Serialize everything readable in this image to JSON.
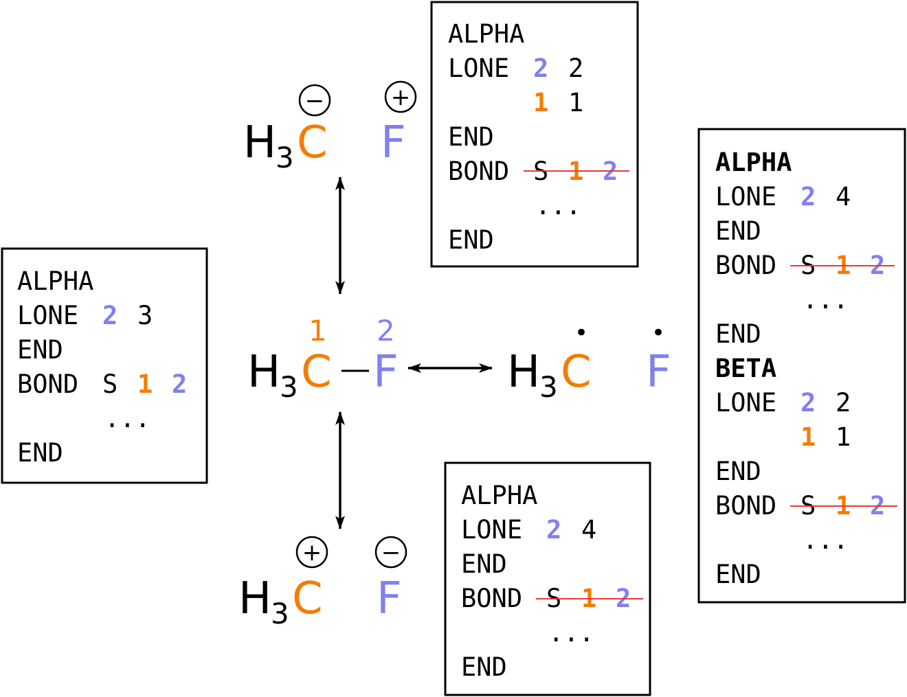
{
  "colors": {
    "carbon": "#f57c00",
    "fluorine": "#8080f0",
    "strike": "#e53935",
    "ink": "#000000"
  },
  "center": {
    "h3": "H",
    "h3_sub": "3",
    "c": "C",
    "bond": "–",
    "f": "F",
    "c_index": "1",
    "f_index": "2"
  },
  "top": {
    "h3": "H",
    "h3_sub": "3",
    "c": "C",
    "f": "F",
    "c_charge": "−",
    "f_charge": "+"
  },
  "bottom": {
    "h3": "H",
    "h3_sub": "3",
    "c": "C",
    "f": "F",
    "c_charge": "+",
    "f_charge": "−"
  },
  "radical": {
    "h3": "H",
    "h3_sub": "3",
    "c": "C",
    "f": "F",
    "dot": "•"
  },
  "box_left": {
    "alpha": "ALPHA",
    "lone": "LONE",
    "lone_a": "2",
    "lone_b": "3",
    "end1": "END",
    "bond": "BOND",
    "bond_s": "S",
    "bond_1": "1",
    "bond_2": "2",
    "ellipsis": "...",
    "end2": "END"
  },
  "box_top": {
    "alpha": "ALPHA",
    "lone": "LONE",
    "lone_a": "2",
    "lone_b": "2",
    "lone2_a": "1",
    "lone2_b": "1",
    "end1": "END",
    "bond": "BOND",
    "bond_s": "S",
    "bond_1": "1",
    "bond_2": "2",
    "ellipsis": "...",
    "end2": "END"
  },
  "box_bottom": {
    "alpha": "ALPHA",
    "lone": "LONE",
    "lone_a": "2",
    "lone_b": "4",
    "end1": "END",
    "bond": "BOND",
    "bond_s": "S",
    "bond_1": "1",
    "bond_2": "2",
    "ellipsis": "...",
    "end2": "END"
  },
  "box_right": {
    "alpha": "ALPHA",
    "lone": "LONE",
    "lone_a": "2",
    "lone_b": "4",
    "end1": "END",
    "bond": "BOND",
    "bond_s": "S",
    "bond_1": "1",
    "bond_2": "2",
    "ellipsis": "...",
    "end2": "END",
    "beta": "BETA",
    "blone": "LONE",
    "blone_a": "2",
    "blone_b": "2",
    "blone2_a": "1",
    "blone2_b": "1",
    "bend1": "END",
    "bbond": "BOND",
    "bbond_s": "S",
    "bbond_1": "1",
    "bbond_2": "2",
    "bellipsis": "...",
    "bend2": "END"
  }
}
